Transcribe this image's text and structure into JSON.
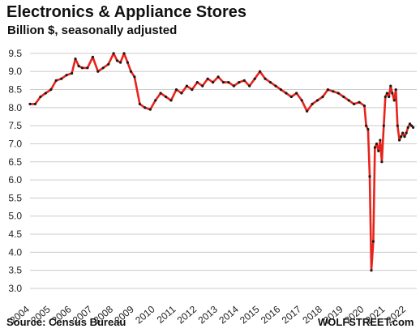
{
  "header": {
    "title": "Electronics & Appliance Stores",
    "subtitle": "Billion $, seasonally adjusted"
  },
  "footer": {
    "source": "Source: Census Bureau",
    "brand": "WOLFSTREET.com"
  },
  "colors": {
    "line": "#e8231b",
    "marker": "#1a1a1a",
    "grid": "#cccccc",
    "text": "#111111"
  },
  "chart_data": {
    "type": "line",
    "title": "Electronics & Appliance Stores",
    "subtitle": "Billion $, seasonally adjusted",
    "xlabel": "",
    "ylabel": "",
    "ylim": [
      3.0,
      9.7
    ],
    "xlim": [
      2004.0,
      2022.5
    ],
    "grid": "horizontal",
    "y_ticks": [
      "3.0",
      "3.5",
      "4.0",
      "4.5",
      "5.0",
      "5.5",
      "6.0",
      "6.5",
      "7.0",
      "7.5",
      "8.0",
      "8.5",
      "9.0",
      "9.5"
    ],
    "x_ticks": [
      "2004",
      "2005",
      "2006",
      "2007",
      "2008",
      "2009",
      "2010",
      "2011",
      "2012",
      "2013",
      "2014",
      "2015",
      "2016",
      "2017",
      "2018",
      "2019",
      "2020",
      "2021",
      "2022"
    ],
    "series": [
      {
        "x": [
          2004.0,
          2004.25,
          2004.5,
          2004.75,
          2005.0,
          2005.25,
          2005.5,
          2005.75,
          2006.0,
          2006.17,
          2006.33,
          2006.5,
          2006.75,
          2007.0,
          2007.25,
          2007.5,
          2007.75,
          2008.0,
          2008.17,
          2008.33,
          2008.5,
          2008.67,
          2008.83,
          2009.0,
          2009.25,
          2009.5,
          2009.75,
          2010.0,
          2010.25,
          2010.5,
          2010.75,
          2011.0,
          2011.25,
          2011.5,
          2011.75,
          2012.0,
          2012.25,
          2012.5,
          2012.75,
          2013.0,
          2013.25,
          2013.5,
          2013.75,
          2014.0,
          2014.25,
          2014.5,
          2014.75,
          2015.0,
          2015.25,
          2015.5,
          2015.75,
          2016.0,
          2016.25,
          2016.5,
          2016.75,
          2017.0,
          2017.25,
          2017.5,
          2017.75,
          2018.0,
          2018.25,
          2018.5,
          2018.75,
          2019.0,
          2019.25,
          2019.5,
          2019.75,
          2020.0,
          2020.08,
          2020.17,
          2020.25,
          2020.33,
          2020.42,
          2020.5,
          2020.58,
          2020.67,
          2020.75,
          2020.83,
          2020.92,
          2021.0,
          2021.08,
          2021.17,
          2021.25,
          2021.33,
          2021.42,
          2021.5,
          2021.58,
          2021.67,
          2021.75,
          2021.83,
          2021.92,
          2022.0,
          2022.08,
          2022.17,
          2022.25,
          2022.33
        ],
        "y": [
          8.1,
          8.1,
          8.3,
          8.4,
          8.5,
          8.75,
          8.8,
          8.9,
          8.95,
          9.35,
          9.15,
          9.1,
          9.1,
          9.4,
          9.0,
          9.1,
          9.2,
          9.5,
          9.3,
          9.25,
          9.5,
          9.25,
          9.0,
          8.85,
          8.1,
          8.0,
          7.95,
          8.2,
          8.4,
          8.3,
          8.2,
          8.5,
          8.4,
          8.6,
          8.5,
          8.7,
          8.6,
          8.8,
          8.7,
          8.85,
          8.7,
          8.7,
          8.6,
          8.7,
          8.75,
          8.6,
          8.8,
          9.0,
          8.8,
          8.7,
          8.6,
          8.5,
          8.4,
          8.3,
          8.4,
          8.2,
          7.9,
          8.1,
          8.2,
          8.3,
          8.5,
          8.45,
          8.4,
          8.3,
          8.2,
          8.1,
          8.15,
          8.05,
          7.5,
          7.4,
          6.1,
          3.5,
          4.3,
          6.9,
          7.0,
          6.8,
          7.1,
          6.5,
          7.5,
          8.3,
          8.4,
          8.3,
          8.6,
          8.4,
          8.2,
          8.5,
          7.5,
          7.1,
          7.2,
          7.3,
          7.2,
          7.3,
          7.45,
          7.55,
          7.5,
          7.45
        ]
      }
    ]
  }
}
